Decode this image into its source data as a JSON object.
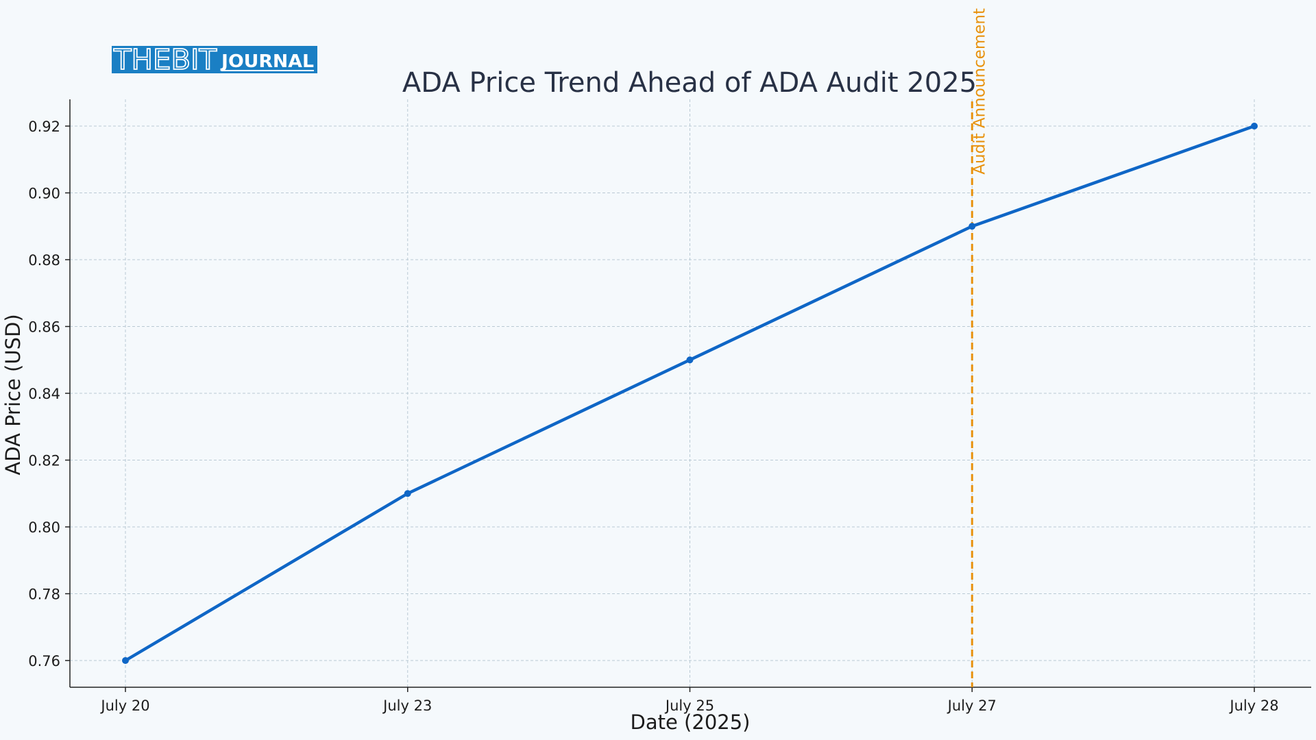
{
  "branding": {
    "logo_text_main": "THEBIT",
    "logo_text_sub": "JOURNAL",
    "logo_color": "#1a7fc4"
  },
  "chart_data": {
    "type": "line",
    "title": "ADA Price Trend Ahead of ADA Audit 2025",
    "xlabel": "Date (2025)",
    "ylabel": "ADA Price (USD)",
    "categories": [
      "July 20",
      "July 23",
      "July 25",
      "July 27",
      "July 28"
    ],
    "series": [
      {
        "values": [
          0.76,
          0.81,
          0.85,
          0.89,
          0.92
        ],
        "color": "#0f66c6"
      }
    ],
    "ylim": [
      0.752,
      0.928
    ],
    "yticks": [
      0.76,
      0.78,
      0.8,
      0.82,
      0.84,
      0.86,
      0.88,
      0.9,
      0.92
    ],
    "ytick_labels": [
      "0.76",
      "0.78",
      "0.80",
      "0.82",
      "0.84",
      "0.86",
      "0.88",
      "0.90",
      "0.92"
    ],
    "grid": true,
    "annotations": [
      {
        "type": "vline",
        "category": "July 27",
        "label": "Audit Announcement",
        "color": "#e8920e"
      }
    ]
  }
}
